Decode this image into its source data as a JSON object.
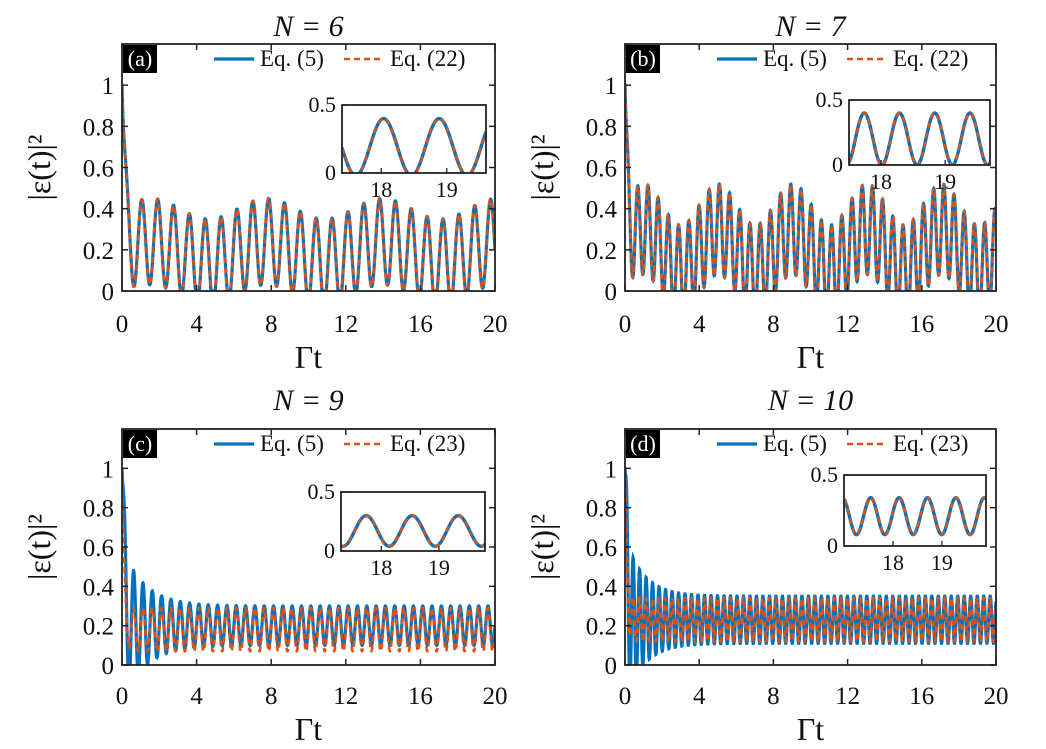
{
  "chart_data": [
    {
      "type": "line",
      "panel_label": "(a)",
      "title": "N = 6",
      "xlabel": "Γt",
      "ylabel": "|ε(t)|²",
      "xlim": [
        0,
        20
      ],
      "ylim": [
        0,
        1.2
      ],
      "xticks": [
        0,
        4,
        8,
        12,
        16,
        20
      ],
      "yticks": [
        0,
        0.2,
        0.4,
        0.6,
        0.8,
        1
      ],
      "legend_placement": "top-right",
      "series": [
        {
          "name": "Eq. (5)",
          "color": "#0072BD",
          "style": "solid",
          "model": {
            "initial": 1.0,
            "mean": 0.19,
            "amp": 0.21,
            "period": 0.85,
            "decay_time": 0.15,
            "envelope_mod": 0.05
          }
        },
        {
          "name": "Eq. (22)",
          "color": "#D95319",
          "style": "dashed",
          "model": {
            "initial": 1.0,
            "mean": 0.19,
            "amp": 0.21,
            "period": 0.85,
            "decay_time": 0.15,
            "envelope_mod": 0.05
          }
        }
      ],
      "inset": {
        "xlim": [
          17.4,
          19.6
        ],
        "ylim": [
          0,
          0.5
        ],
        "xticks": [
          18,
          19
        ],
        "yticks": [
          0,
          0.5
        ],
        "ytick_labels": [
          "0",
          "0.5"
        ],
        "mean": 0.19,
        "amp": 0.21,
        "period": 0.85,
        "phase": 0.2
      }
    },
    {
      "type": "line",
      "panel_label": "(b)",
      "title": "N = 7",
      "xlabel": "Γt",
      "ylabel": "|ε(t)|²",
      "xlim": [
        0,
        20
      ],
      "ylim": [
        0,
        1.2
      ],
      "xticks": [
        0,
        4,
        8,
        12,
        16,
        20
      ],
      "yticks": [
        0,
        0.2,
        0.4,
        0.6,
        0.8,
        1
      ],
      "legend_placement": "top-right",
      "series": [
        {
          "name": "Eq. (5)",
          "color": "#0072BD",
          "style": "solid",
          "model": {
            "initial": 1.0,
            "mean": 0.2,
            "amp": 0.22,
            "period": 0.55,
            "decay_time": 0.12,
            "envelope_mod": 0.1
          }
        },
        {
          "name": "Eq. (22)",
          "color": "#D95319",
          "style": "dashed",
          "model": {
            "initial": 1.0,
            "mean": 0.2,
            "amp": 0.22,
            "period": 0.55,
            "decay_time": 0.12,
            "envelope_mod": 0.1
          }
        }
      ],
      "inset": {
        "xlim": [
          17.5,
          19.7
        ],
        "ylim": [
          0,
          0.5
        ],
        "xticks": [
          18,
          19
        ],
        "yticks": [
          0,
          0.5
        ],
        "ytick_labels": [
          "0",
          "0.5"
        ],
        "mean": 0.2,
        "amp": 0.2,
        "period": 0.55,
        "phase": 0.0
      }
    },
    {
      "type": "line",
      "panel_label": "(c)",
      "title": "N = 9",
      "xlabel": "Γt",
      "ylabel": "|ε(t)|²",
      "xlim": [
        0,
        20
      ],
      "ylim": [
        0,
        1.2
      ],
      "xticks": [
        0,
        4,
        8,
        12,
        16,
        20
      ],
      "yticks": [
        0,
        0.2,
        0.4,
        0.6,
        0.8,
        1
      ],
      "legend_placement": "top-right",
      "series": [
        {
          "name": "Eq. (5)",
          "color": "#0072BD",
          "style": "solid",
          "model": {
            "initial": 1.0,
            "mean": 0.2,
            "amp": 0.1,
            "extra_amp": 0.3,
            "extra_decay": 1.2,
            "period": 0.5,
            "decay_time": 0.1
          }
        },
        {
          "name": "Eq. (23)",
          "color": "#D95319",
          "style": "dashed",
          "model": {
            "initial": 1.0,
            "mean": 0.18,
            "amp": 0.11,
            "extra_amp": 0.0,
            "extra_decay": 1.0,
            "period": 0.5,
            "decay_time": 0.1
          }
        }
      ],
      "inset": {
        "xlim": [
          17.3,
          19.8
        ],
        "ylim": [
          0,
          0.5
        ],
        "xticks": [
          18,
          19
        ],
        "yticks": [
          0,
          0.5
        ],
        "ytick_labels": [
          "0",
          "0.5"
        ],
        "mean": 0.17,
        "amp": 0.13,
        "period": 0.8,
        "phase": 0.5
      }
    },
    {
      "type": "line",
      "panel_label": "(d)",
      "title": "N = 10",
      "xlabel": "Γt",
      "ylabel": "|ε(t)|²",
      "xlim": [
        0,
        20
      ],
      "ylim": [
        0,
        1.2
      ],
      "xticks": [
        0,
        4,
        8,
        12,
        16,
        20
      ],
      "yticks": [
        0,
        0.2,
        0.4,
        0.6,
        0.8,
        1
      ],
      "legend_placement": "top-right",
      "series": [
        {
          "name": "Eq. (5)",
          "color": "#0072BD",
          "style": "solid",
          "model": {
            "initial": 1.0,
            "mean": 0.23,
            "amp": 0.12,
            "extra_amp": 0.3,
            "extra_decay": 1.0,
            "period": 0.35,
            "decay_time": 0.08
          }
        },
        {
          "name": "Eq. (23)",
          "color": "#D95319",
          "style": "dashed",
          "model": {
            "initial": 1.0,
            "mean": 0.23,
            "amp": 0.11,
            "extra_amp": 0.0,
            "extra_decay": 1.0,
            "period": 0.35,
            "decay_time": 0.08
          }
        }
      ],
      "inset": {
        "xlim": [
          17.0,
          19.9
        ],
        "ylim": [
          0,
          0.5
        ],
        "xticks": [
          18,
          19
        ],
        "yticks": [
          0,
          0.5
        ],
        "ytick_labels": [
          "0",
          "0.5"
        ],
        "mean": 0.21,
        "amp": 0.13,
        "period": 0.58,
        "phase": 0.0
      }
    }
  ]
}
